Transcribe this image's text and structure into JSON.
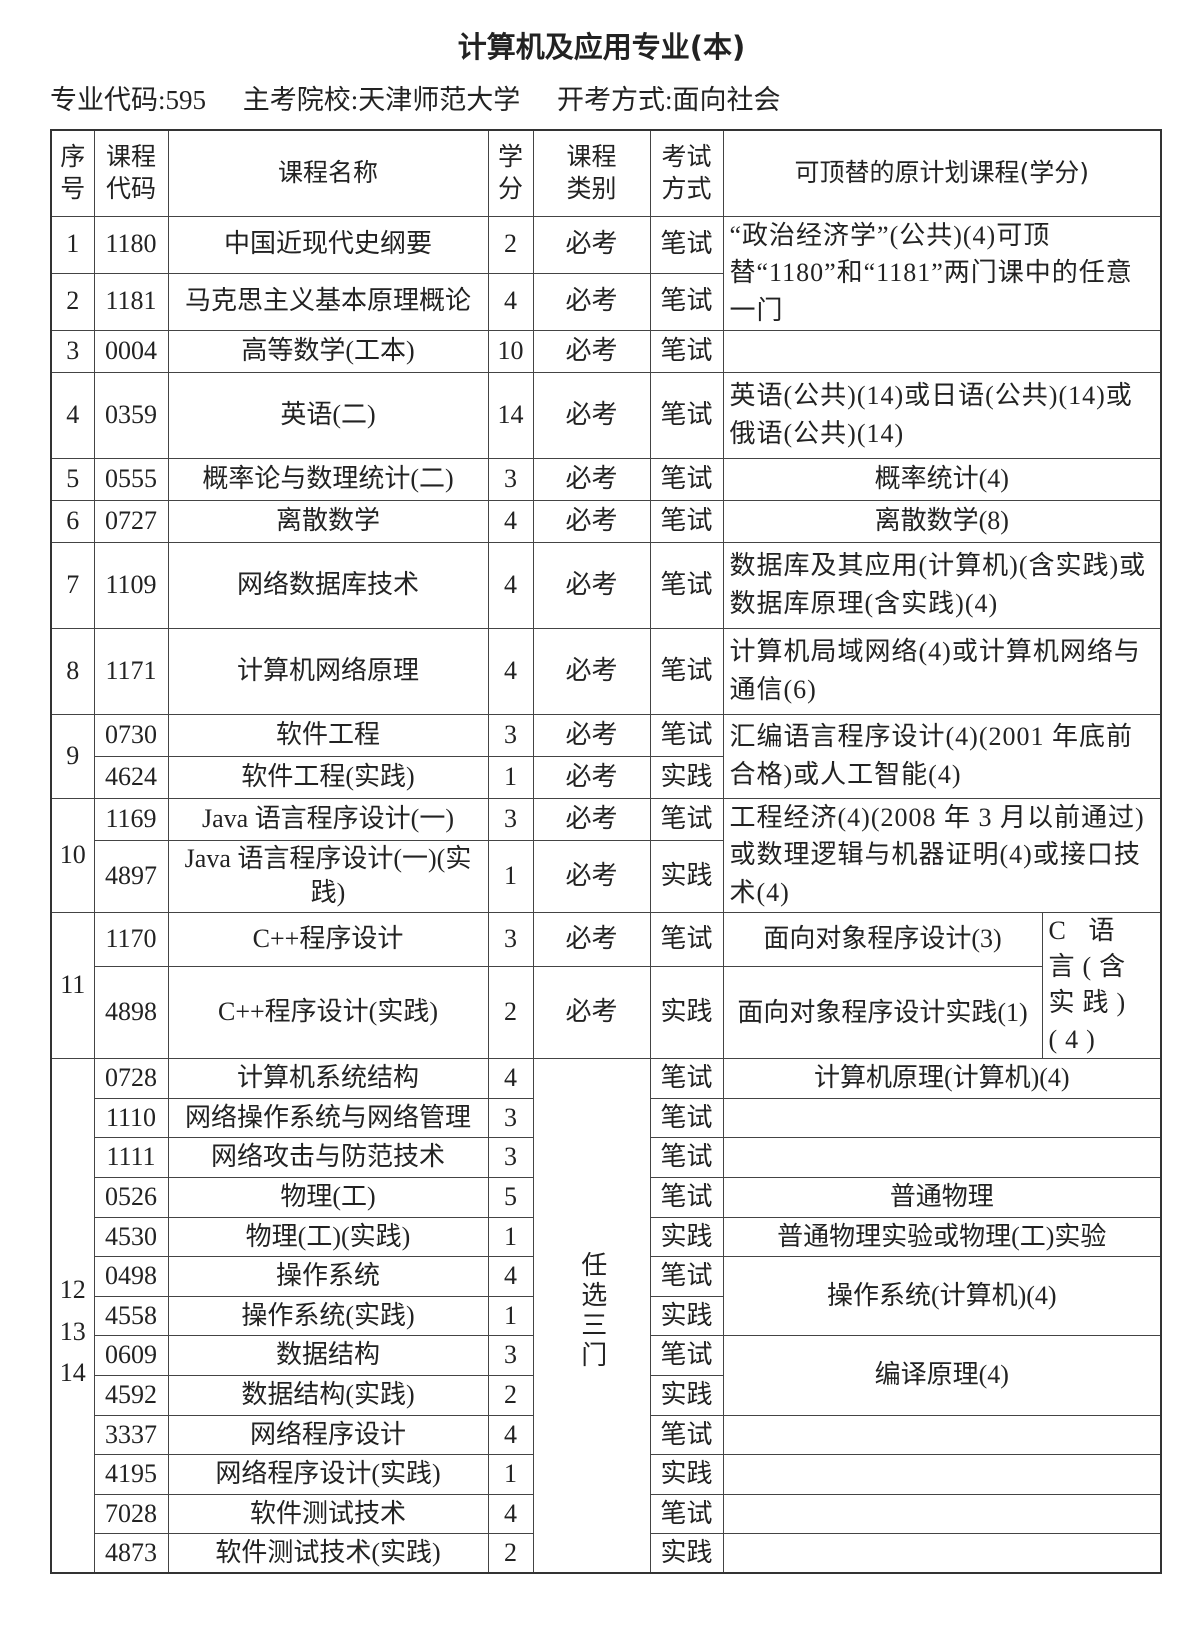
{
  "title": "计算机及应用专业(本)",
  "meta": {
    "code": "专业代码:595",
    "school": "主考院校:天津师范大学",
    "mode": "开考方式:面向社会"
  },
  "headers": {
    "seq": "序号",
    "code": "课程代码",
    "name": "课程名称",
    "credit": "学分",
    "type": "课程类别",
    "exam": "考试方式",
    "replace": "可顶替的原计划课程(学分)"
  },
  "rows": [
    {
      "seq": "1",
      "code": "1180",
      "name": "中国近现代史纲要",
      "credit": "2",
      "type": "必考",
      "exam": "笔试",
      "replace": "“政治经济学”(公共)(4)可顶替“1180”和“1181”两门课中的任意一门"
    },
    {
      "seq": "2",
      "code": "1181",
      "name": "马克思主义基本原理概论",
      "credit": "4",
      "type": "必考",
      "exam": "笔试"
    },
    {
      "seq": "3",
      "code": "0004",
      "name": "高等数学(工本)",
      "credit": "10",
      "type": "必考",
      "exam": "笔试",
      "replace": ""
    },
    {
      "seq": "4",
      "code": "0359",
      "name": "英语(二)",
      "credit": "14",
      "type": "必考",
      "exam": "笔试",
      "replace": "英语(公共)(14)或日语(公共)(14)或俄语(公共)(14)"
    },
    {
      "seq": "5",
      "code": "0555",
      "name": "概率论与数理统计(二)",
      "credit": "3",
      "type": "必考",
      "exam": "笔试",
      "replace": "概率统计(4)"
    },
    {
      "seq": "6",
      "code": "0727",
      "name": "离散数学",
      "credit": "4",
      "type": "必考",
      "exam": "笔试",
      "replace": "离散数学(8)"
    },
    {
      "seq": "7",
      "code": "1109",
      "name": "网络数据库技术",
      "credit": "4",
      "type": "必考",
      "exam": "笔试",
      "replace": "数据库及其应用(计算机)(含实践)或数据库原理(含实践)(4)"
    },
    {
      "seq": "8",
      "code": "1171",
      "name": "计算机网络原理",
      "credit": "4",
      "type": "必考",
      "exam": "笔试",
      "replace": "计算机局域网络(4)或计算机网络与通信(6)"
    },
    {
      "seq": "9",
      "code": "0730",
      "name": "软件工程",
      "credit": "3",
      "type": "必考",
      "exam": "笔试",
      "replace": "汇编语言程序设计(4)(2001 年底前合格)或人工智能(4)"
    },
    {
      "code": "4624",
      "name": "软件工程(实践)",
      "credit": "1",
      "type": "必考",
      "exam": "实践"
    },
    {
      "seq": "10",
      "code": "1169",
      "name": "Java 语言程序设计(一)",
      "credit": "3",
      "type": "必考",
      "exam": "笔试",
      "replace": "工程经济(4)(2008 年 3 月以前通过)或数理逻辑与机器证明(4)或接口技术(4)"
    },
    {
      "code": "4897",
      "name": "Java 语言程序设计(一)(实践)",
      "credit": "1",
      "type": "必考",
      "exam": "实践"
    },
    {
      "seq": "11",
      "code": "1170",
      "name": "C++程序设计",
      "credit": "3",
      "type": "必考",
      "exam": "笔试",
      "replace": "面向对象程序设计(3)",
      "replace2": "C 语言(含实践)(4)"
    },
    {
      "code": "4898",
      "name": "C++程序设计(实践)",
      "credit": "2",
      "type": "必考",
      "exam": "实践",
      "replace": "面向对象程序设计实践(1)"
    }
  ],
  "elective": {
    "seqs": [
      "12",
      "13",
      "14"
    ],
    "type": "任选三门",
    "rows": [
      {
        "code": "0728",
        "name": "计算机系统结构",
        "credit": "4",
        "exam": "笔试",
        "replace": "计算机原理(计算机)(4)"
      },
      {
        "code": "1110",
        "name": "网络操作系统与网络管理",
        "credit": "3",
        "exam": "笔试",
        "replace": ""
      },
      {
        "code": "1111",
        "name": "网络攻击与防范技术",
        "credit": "3",
        "exam": "笔试",
        "replace": ""
      },
      {
        "code": "0526",
        "name": "物理(工)",
        "credit": "5",
        "exam": "笔试",
        "replace": "普通物理"
      },
      {
        "code": "4530",
        "name": "物理(工)(实践)",
        "credit": "1",
        "exam": "实践",
        "replace": "普通物理实验或物理(工)实验"
      },
      {
        "code": "0498",
        "name": "操作系统",
        "credit": "4",
        "exam": "笔试",
        "replace": "操作系统(计算机)(4)"
      },
      {
        "code": "4558",
        "name": "操作系统(实践)",
        "credit": "1",
        "exam": "实践"
      },
      {
        "code": "0609",
        "name": "数据结构",
        "credit": "3",
        "exam": "笔试",
        "replace": "编译原理(4)"
      },
      {
        "code": "4592",
        "name": "数据结构(实践)",
        "credit": "2",
        "exam": "实践"
      },
      {
        "code": "3337",
        "name": "网络程序设计",
        "credit": "4",
        "exam": "笔试",
        "replace": ""
      },
      {
        "code": "4195",
        "name": "网络程序设计(实践)",
        "credit": "1",
        "exam": "实践",
        "replace": ""
      },
      {
        "code": "7028",
        "name": "软件测试技术",
        "credit": "4",
        "exam": "笔试",
        "replace": ""
      },
      {
        "code": "4873",
        "name": "软件测试技术(实践)",
        "credit": "2",
        "exam": "实践",
        "replace": ""
      }
    ]
  }
}
